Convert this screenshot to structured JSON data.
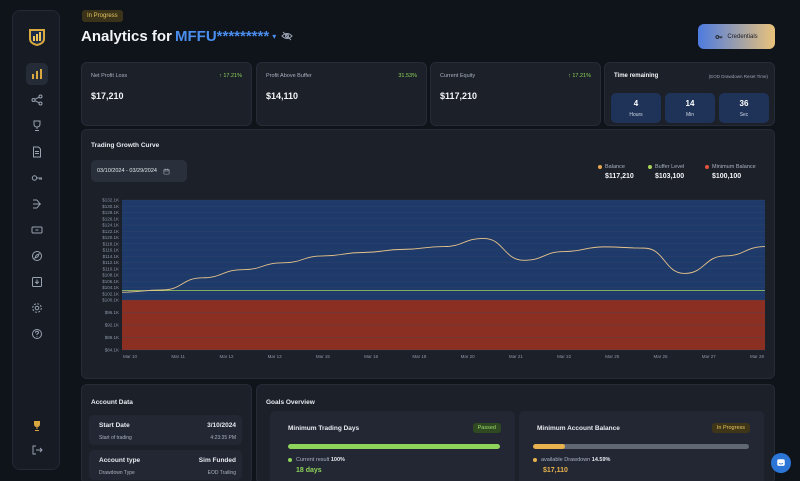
{
  "header": {
    "status_badge": "In Progress",
    "title": "Analytics for",
    "account": "MFFU*********",
    "credentials_label": "Credentials"
  },
  "stats": [
    {
      "label": "Net Profit Loss",
      "delta": "17.21%",
      "value": "$17,210",
      "delta_arrow": true
    },
    {
      "label": "Profit Above Buffer",
      "delta": "31.53%",
      "value": "$14,110",
      "delta_arrow": false
    },
    {
      "label": "Current Equity",
      "delta": "17.21%",
      "value": "$117,210",
      "delta_arrow": true
    }
  ],
  "time_remaining": {
    "title": "Time remaining",
    "subtitle": "(EOD Drawdown Reset Time)",
    "boxes": [
      {
        "value": "4",
        "unit": "Hours"
      },
      {
        "value": "14",
        "unit": "Min"
      },
      {
        "value": "36",
        "unit": "Sec"
      }
    ]
  },
  "growth": {
    "title": "Trading Growth Curve",
    "date_range": "03/10/2024 - 03/29/2024",
    "legend": [
      {
        "name": "Balance",
        "value": "$117,210",
        "color": "#e8a44e"
      },
      {
        "name": "Buffer Level",
        "value": "$103,100",
        "color": "#a8d35a"
      },
      {
        "name": "Minimum Balance",
        "value": "$100,100",
        "color": "#e0553a"
      }
    ]
  },
  "chart_data": {
    "type": "line",
    "x": [
      "Mar 10",
      "Mar 11",
      "Mar 12",
      "Mar 13",
      "Mar 14",
      "Mar 15",
      "Mar 16",
      "Mar 18",
      "Mar 19",
      "Mar 20",
      "Mar 21",
      "Mar 22",
      "Mar 23",
      "Mar 25",
      "Mar 26",
      "Mar 27",
      "Mar 28"
    ],
    "x_ticks": [
      "Mar 10",
      "Mar 11",
      "Mar 12",
      "Mar 13",
      "Mar 15",
      "Mar 16",
      "Mar 18",
      "Mar 20",
      "Mar 21",
      "Mar 22",
      "Mar 25",
      "Mar 26",
      "Mar 27",
      "Mar 28"
    ],
    "y_ticks": [
      "$84.1K",
      "$88.1K",
      "$92.1K",
      "$96.1K",
      "$100.1K",
      "$102.1K",
      "$104.1K",
      "$106.1K",
      "$108.1K",
      "$110.1K",
      "$112.1K",
      "$114.1K",
      "$116.1K",
      "$118.1K",
      "$120.1K",
      "$122.1K",
      "$124.1K",
      "$126.1K",
      "$128.1K",
      "$130.1K",
      "$132.1K"
    ],
    "series": [
      {
        "name": "Balance",
        "values": [
          102.6,
          103.3,
          107.2,
          109.8,
          112.0,
          114.2,
          115.3,
          116.3,
          117.2,
          119.8,
          112.8,
          115.6,
          117.1,
          116.7,
          108.6,
          114.2,
          117.2
        ]
      },
      {
        "name": "Buffer Level",
        "values": [
          103.1,
          103.1,
          103.1,
          103.1,
          103.1,
          103.1,
          103.1,
          103.1,
          103.1,
          103.1,
          103.1,
          103.1,
          103.1,
          103.1,
          103.1,
          103.1,
          103.1
        ]
      },
      {
        "name": "Minimum Balance",
        "values": [
          100.1,
          100.1,
          100.1,
          100.1,
          100.1,
          100.1,
          100.1,
          100.1,
          100.1,
          100.1,
          100.1,
          100.1,
          100.1,
          100.1,
          100.1,
          100.1,
          100.1
        ]
      }
    ],
    "y_unit": "$K",
    "ylim": [
      84.1,
      132.1
    ]
  },
  "account_data": {
    "title": "Account Data",
    "rows": [
      {
        "label": "Start Date",
        "value": "3/10/2024",
        "sub_label": "Start of trading",
        "sub_value": "4:23:35 PM"
      },
      {
        "label": "Account type",
        "value": "Sim Funded",
        "sub_label": "Drawdown Type",
        "sub_value": "EOD Trailing"
      }
    ]
  },
  "goals": {
    "title": "Goals Overview",
    "items": [
      {
        "title": "Minimum Trading Days",
        "status": "Passed",
        "progress": 1.0,
        "info_label": "Current result",
        "info_value": "100%",
        "big_value": "18 days"
      },
      {
        "title": "Minimum Account Balance",
        "status": "In Progress",
        "progress": 0.15,
        "info_label": "available Drawdown",
        "info_value": "14.59%",
        "big_value": "$17,110"
      }
    ]
  }
}
